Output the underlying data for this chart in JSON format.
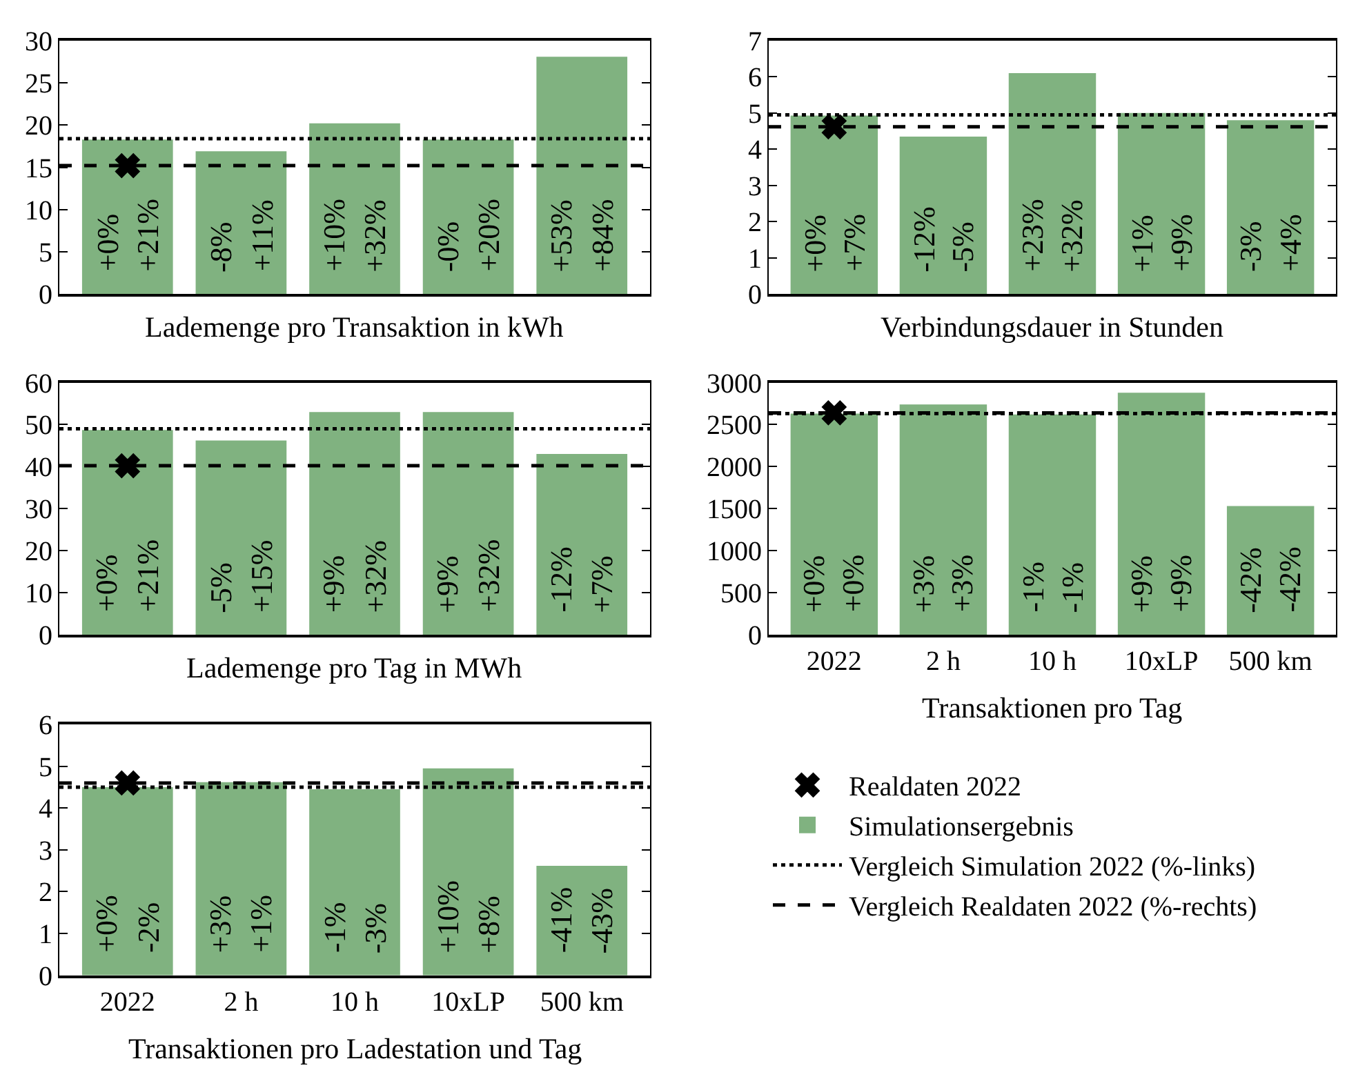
{
  "chart_data": [
    {
      "type": "bar",
      "xlabel": "Lademenge pro Transaktion in kWh",
      "categories": [
        null,
        null,
        null,
        null,
        null
      ],
      "ylim": [
        0,
        30
      ],
      "yticks": [
        0,
        5,
        10,
        15,
        20,
        25,
        30
      ],
      "tick_labels": "y",
      "series": [
        {
          "color": "#80b280",
          "values": [
            18.3,
            16.9,
            20.2,
            18.3,
            28.1
          ]
        },
        {
          "type": "scatter",
          "color": "#000000",
          "marker": "cross",
          "values": [
            15.2,
            null,
            null,
            null,
            null
          ]
        }
      ],
      "ref_lines": [
        {
          "axis": "y",
          "value": 18.4,
          "line_style": "dotted",
          "color": "#000000"
        },
        {
          "axis": "y",
          "value": 15.2,
          "line_style": "dashed",
          "color": "#000000"
        }
      ],
      "annotations": [
        "+0%",
        "+21%",
        "-8%",
        "+11%",
        "+10%",
        "+32%",
        "-0%",
        "+20%",
        "+53%",
        "+84%"
      ]
    },
    {
      "type": "bar",
      "xlabel": "Verbindungsdauer in Stunden",
      "categories": [
        null,
        null,
        null,
        null,
        null
      ],
      "ylim": [
        0,
        7
      ],
      "yticks": [
        0,
        1,
        2,
        3,
        4,
        5,
        6,
        7
      ],
      "tick_labels": "y",
      "series": [
        {
          "color": "#80b280",
          "values": [
            4.93,
            4.35,
            6.1,
            5.0,
            4.8
          ]
        },
        {
          "type": "scatter",
          "color": "#000000",
          "marker": "cross",
          "values": [
            4.62,
            null,
            null,
            null,
            null
          ]
        }
      ],
      "ref_lines": [
        {
          "axis": "y",
          "value": 4.95,
          "line_style": "dotted",
          "color": "#000000"
        },
        {
          "axis": "y",
          "value": 4.62,
          "line_style": "dashed",
          "color": "#000000"
        }
      ],
      "annotations": [
        "+0%",
        "+7%",
        "-12%",
        "-5%",
        "+23%",
        "+32%",
        "+1%",
        "+9%",
        "-3%",
        "+4%"
      ]
    },
    {
      "type": "bar",
      "xlabel": "Lademenge pro Tag in MWh",
      "categories": [
        null,
        null,
        null,
        null,
        null
      ],
      "ylim": [
        0,
        60
      ],
      "yticks": [
        0,
        10,
        20,
        30,
        40,
        50,
        60
      ],
      "tick_labels": "y",
      "series": [
        {
          "color": "#80b280",
          "values": [
            48.7,
            46.2,
            53,
            53,
            43
          ]
        },
        {
          "type": "scatter",
          "color": "#000000",
          "marker": "cross",
          "values": [
            40.2,
            null,
            null,
            null,
            null
          ]
        }
      ],
      "ref_lines": [
        {
          "axis": "y",
          "value": 49,
          "line_style": "dotted",
          "color": "#000000"
        },
        {
          "axis": "y",
          "value": 40.2,
          "line_style": "dashed",
          "color": "#000000"
        }
      ],
      "annotations": [
        "+0%",
        "+21%",
        "-5%",
        "+15%",
        "+9%",
        "+32%",
        "+9%",
        "+32%",
        "-12%",
        "+7%"
      ]
    },
    {
      "type": "bar",
      "xlabel": "Transaktionen pro Tag",
      "categories": [
        "2022",
        "2 h",
        "10 h",
        "10xLP",
        "500 km"
      ],
      "ylim": [
        0,
        3000
      ],
      "yticks": [
        0,
        500,
        1000,
        1500,
        2000,
        2500,
        3000
      ],
      "series": [
        {
          "color": "#80b280",
          "values": [
            2630,
            2740,
            2620,
            2880,
            1530
          ]
        },
        {
          "type": "scatter",
          "color": "#000000",
          "marker": "cross",
          "values": [
            2640,
            null,
            null,
            null,
            null
          ]
        }
      ],
      "ref_lines": [
        {
          "axis": "y",
          "value": 2630,
          "line_style": "dotted",
          "color": "#000000"
        },
        {
          "axis": "y",
          "value": 2640,
          "line_style": "dashed",
          "color": "#000000"
        }
      ],
      "annotations": [
        "+0%",
        "+0%",
        "+3%",
        "+3%",
        "-1%",
        "-1%",
        "+9%",
        "+9%",
        "-42%",
        "-42%"
      ]
    },
    {
      "type": "bar",
      "xlabel": "Transaktionen pro Ladestation und Tag",
      "categories": [
        "2022",
        "2 h",
        "10 h",
        "10xLP",
        "500 km"
      ],
      "ylim": [
        0,
        6
      ],
      "yticks": [
        0,
        1,
        2,
        3,
        4,
        5,
        6
      ],
      "legend": "right",
      "series": [
        {
          "name": "Simulationsergebnis",
          "color": "#80b280",
          "values": [
            4.5,
            4.62,
            4.45,
            4.95,
            2.62
          ]
        },
        {
          "type": "scatter",
          "name": "Realdaten 2022",
          "color": "#000000",
          "marker": "cross",
          "values": [
            4.6,
            null,
            null,
            null,
            null
          ]
        }
      ],
      "ref_lines": [
        {
          "axis": "y",
          "value": 4.5,
          "line_style": "dotted",
          "color": "#000000",
          "label": "Vergleich Simulation 2022 (%-links)"
        },
        {
          "axis": "y",
          "value": 4.6,
          "line_style": "dashed",
          "color": "#000000",
          "label": "Vergleich Realdaten 2022 (%-rechts)"
        }
      ],
      "annotations": [
        "+0%",
        "-2%",
        "+3%",
        "+1%",
        "-1%",
        "-3%",
        "+10%",
        "+8%",
        "-41%",
        "-43%"
      ]
    }
  ]
}
